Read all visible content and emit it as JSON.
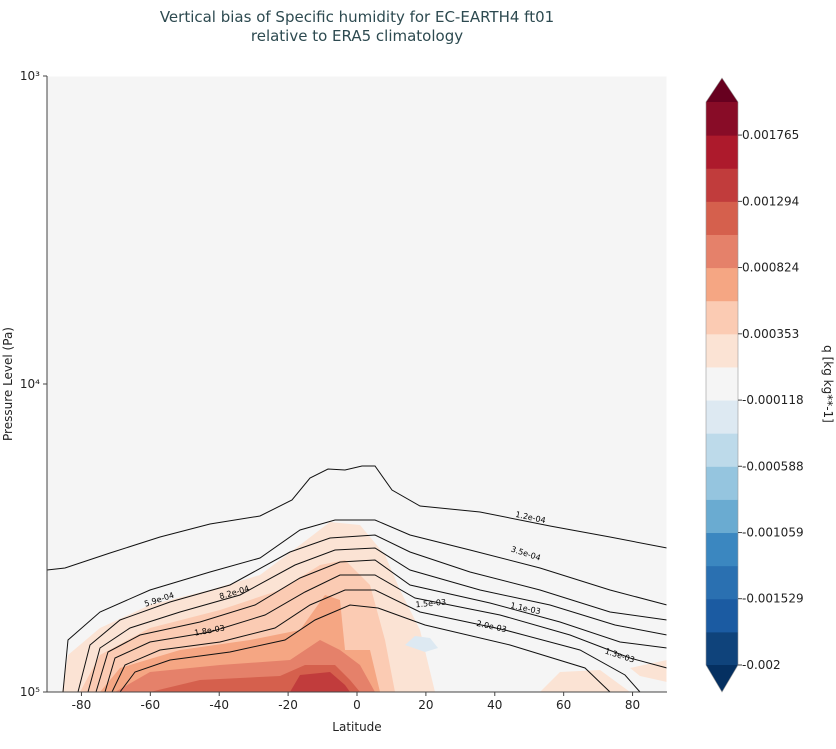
{
  "chart_data": {
    "type": "contourf",
    "title": "Vertical bias of Specific humidity for EC-EARTH4 ft01",
    "subtitle": "relative to ERA5 climatology",
    "x_label": "Latitude",
    "y_label": "Pressure Level (Pa)",
    "xlim": [
      -90,
      90
    ],
    "xticks": [
      -80,
      -60,
      -40,
      -20,
      0,
      20,
      40,
      60,
      80
    ],
    "ylim": [
      100000,
      1000
    ],
    "yscale": "log",
    "yticks": [
      {
        "value": 1000,
        "label": "10³"
      },
      {
        "value": 10000,
        "label": "10⁴"
      },
      {
        "value": 100000,
        "label": "10⁵"
      }
    ],
    "contour_labels": [
      "1.2e-04",
      "3.5e-04",
      "5.9e-04",
      "8.2e-04",
      "1.8e-03",
      "1.5e-03",
      "1.1e-03",
      "2.0e-03",
      "1.3e-03"
    ],
    "colorbar": {
      "label": "q [kg kg**-1]",
      "lim": [
        -0.002,
        0.002
      ],
      "ticks": [
        0.001765,
        0.001294,
        0.000824,
        0.000353,
        -0.000118,
        -0.000588,
        -0.001059,
        -0.001529,
        -0.002
      ],
      "colors": [
        "#0f437b",
        "#1b5ba2",
        "#2a70b1",
        "#3b87c0",
        "#6aabd1",
        "#95c5df",
        "#bddaea",
        "#dde9f2",
        "#f5f5f5",
        "#fbe3d4",
        "#fbcbb3",
        "#f5a683",
        "#e5816a",
        "#d5604d",
        "#c13c3c",
        "#ad1a2c",
        "#880c27"
      ],
      "extend_colors": [
        "#053061",
        "#67001f"
      ]
    }
  }
}
